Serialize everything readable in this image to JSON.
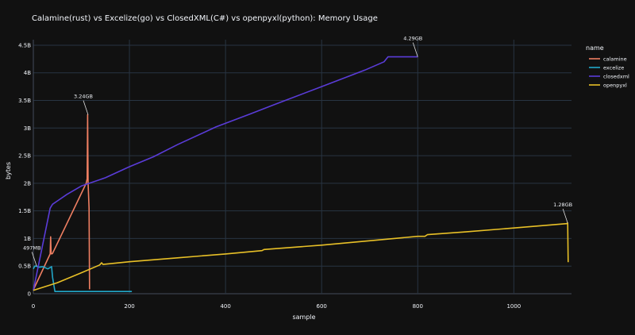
{
  "chart_data": {
    "type": "line",
    "title": "Calamine(rust) vs Excelize(go) vs ClosedXML(C#) vs openpyxl(python): Memory Usage",
    "xlabel": "sample",
    "ylabel": "bytes",
    "xlim": [
      0,
      1120
    ],
    "ylim": [
      0,
      4.6
    ],
    "x_ticks": [
      0,
      200,
      400,
      600,
      800,
      1000
    ],
    "x_tick_labels": [
      "0",
      "200",
      "400",
      "600",
      "800",
      "1000"
    ],
    "y_ticks": [
      0,
      0.5,
      1,
      1.5,
      2,
      2.5,
      3,
      3.5,
      4,
      4.5
    ],
    "y_tick_labels": [
      "0",
      "0.5B",
      "1B",
      "1.5B",
      "2B",
      "2.5B",
      "3B",
      "3.5B",
      "4B",
      "4.5B"
    ],
    "y_unit_note": "values in billions of bytes",
    "grid": true,
    "legend_title": "name",
    "legend_position": "right",
    "series": [
      {
        "name": "calamine",
        "color": "#ef7f62",
        "x": [
          0,
          35,
          36,
          37,
          38,
          40,
          110,
          112,
          113,
          114,
          116,
          117
        ],
        "y": [
          0.07,
          0.72,
          1.03,
          0.73,
          0.72,
          0.73,
          2.0,
          2.08,
          3.24,
          2.0,
          1.55,
          0.08
        ]
      },
      {
        "name": "excelize",
        "color": "#22a8c9",
        "x": [
          0,
          3,
          7,
          12,
          20,
          30,
          38,
          40,
          45,
          205
        ],
        "y": [
          0.45,
          0.5,
          0.497,
          0.48,
          0.49,
          0.45,
          0.49,
          0.3,
          0.04,
          0.04
        ]
      },
      {
        "name": "closedxml",
        "color": "#5a3cd8",
        "x": [
          0,
          35,
          40,
          50,
          70,
          100,
          150,
          200,
          250,
          300,
          380,
          450,
          500,
          600,
          690,
          730,
          738,
          800
        ],
        "y": [
          0.06,
          1.55,
          1.62,
          1.68,
          1.8,
          1.95,
          2.1,
          2.3,
          2.48,
          2.7,
          3.02,
          3.25,
          3.42,
          3.75,
          4.05,
          4.2,
          4.29,
          4.29
        ]
      },
      {
        "name": "openpyxl",
        "color": "#e8c027",
        "x": [
          0,
          50,
          100,
          138,
          142,
          145,
          200,
          300,
          400,
          476,
          480,
          600,
          800,
          815,
          820,
          900,
          1000,
          1110,
          1112,
          1113
        ],
        "y": [
          0.06,
          0.2,
          0.38,
          0.52,
          0.56,
          0.53,
          0.58,
          0.65,
          0.72,
          0.78,
          0.8,
          0.88,
          1.04,
          1.04,
          1.07,
          1.12,
          1.19,
          1.27,
          1.28,
          0.57
        ]
      }
    ],
    "annotations": [
      {
        "text": "3.24GB",
        "x": 114,
        "y": 3.24
      },
      {
        "text": "497MB",
        "x": 7,
        "y": 0.497
      },
      {
        "text": "4.29GB",
        "x": 800,
        "y": 4.29
      },
      {
        "text": "1.28GB",
        "x": 1112,
        "y": 1.28
      }
    ]
  }
}
